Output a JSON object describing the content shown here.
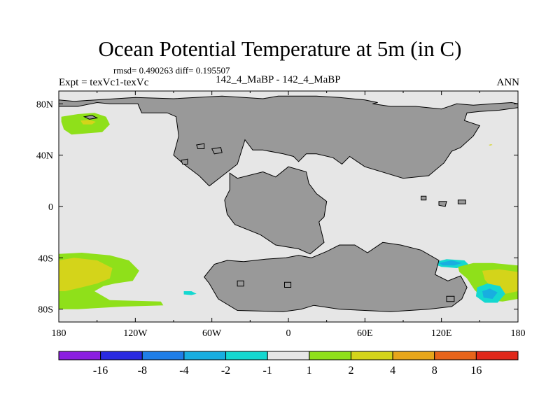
{
  "chart_data": {
    "type": "heatmap",
    "title": "Ocean Potential Temperature at 5m (in C)",
    "stats_line": "rmsd= 0.490263 diff= 0.195507",
    "left_label": "Expt = texVc1-texVc",
    "center_label": "142_4_MaBP - 142_4_MaBP",
    "right_label": "ANN",
    "xlim": [
      -180,
      180
    ],
    "ylim": [
      -90,
      90
    ],
    "x_ticks": [
      {
        "value": -180,
        "label": "180"
      },
      {
        "value": -120,
        "label": "120W"
      },
      {
        "value": -60,
        "label": "60W"
      },
      {
        "value": 0,
        "label": "0"
      },
      {
        "value": 60,
        "label": "60E"
      },
      {
        "value": 120,
        "label": "120E"
      },
      {
        "value": 180,
        "label": "180"
      }
    ],
    "y_ticks": [
      {
        "value": 80,
        "label": "80N"
      },
      {
        "value": 40,
        "label": "40N"
      },
      {
        "value": 0,
        "label": "0"
      },
      {
        "value": -40,
        "label": "40S"
      },
      {
        "value": -80,
        "label": "80S"
      }
    ],
    "colorbar": {
      "boundaries": [
        "-16",
        "-8",
        "-4",
        "-2",
        "-1",
        "1",
        "2",
        "4",
        "8",
        "16"
      ],
      "colors": [
        "#8b1ee0",
        "#2a2ae0",
        "#1f7ee8",
        "#18aee0",
        "#14d8d0",
        "#e6e6e6",
        "#8fe01a",
        "#d4d41a",
        "#e8a61a",
        "#e8641a",
        "#e0281a"
      ]
    },
    "land_color": "#999999",
    "ocean_color": "#e6e6e6",
    "regions": [
      {
        "name": "north-pacific-warm-patch",
        "level": 2,
        "points": [
          [
            -178,
            70
          ],
          [
            -165,
            72
          ],
          [
            -152,
            73
          ],
          [
            -143,
            70
          ],
          [
            -140,
            64
          ],
          [
            -146,
            58
          ],
          [
            -158,
            57
          ],
          [
            -170,
            56
          ],
          [
            -176,
            60
          ],
          [
            -178,
            66
          ]
        ]
      },
      {
        "name": "north-pacific-warm-core",
        "level": 4,
        "points": [
          [
            -163,
            67
          ],
          [
            -156,
            67.5
          ],
          [
            -151,
            66
          ],
          [
            -154,
            64
          ],
          [
            -161,
            64
          ]
        ]
      },
      {
        "name": "south-pacific-warm-band",
        "level": 2,
        "points": [
          [
            -180,
            -37
          ],
          [
            -162,
            -36
          ],
          [
            -140,
            -38
          ],
          [
            -125,
            -42
          ],
          [
            -117,
            -50
          ],
          [
            -122,
            -58
          ],
          [
            -136,
            -60
          ],
          [
            -145,
            -62
          ],
          [
            -152,
            -66
          ],
          [
            -140,
            -73
          ],
          [
            -100,
            -74
          ],
          [
            -98,
            -77
          ],
          [
            -130,
            -78
          ],
          [
            -165,
            -80
          ],
          [
            -180,
            -80
          ]
        ]
      },
      {
        "name": "south-pacific-warm-core",
        "level": 4,
        "points": [
          [
            -180,
            -42
          ],
          [
            -168,
            -40
          ],
          [
            -150,
            -42
          ],
          [
            -138,
            -48
          ],
          [
            -140,
            -56
          ],
          [
            -150,
            -60
          ],
          [
            -162,
            -63
          ],
          [
            -175,
            -66
          ],
          [
            -180,
            -66
          ]
        ]
      },
      {
        "name": "south-atlantic-cool-patch",
        "level": -1,
        "points": [
          [
            -82,
            -66
          ],
          [
            -76,
            -66
          ],
          [
            -72,
            -68
          ],
          [
            -76,
            -69
          ],
          [
            -82,
            -68.5
          ]
        ]
      },
      {
        "name": "south-indian-cool-patch",
        "level": -1,
        "points": [
          [
            112,
            -44
          ],
          [
            124,
            -41
          ],
          [
            138,
            -42
          ],
          [
            142,
            -46
          ],
          [
            132,
            -48
          ],
          [
            120,
            -47
          ]
        ]
      },
      {
        "name": "south-indian-cool-core",
        "level": -2,
        "points": [
          [
            118,
            -44
          ],
          [
            128,
            -42
          ],
          [
            136,
            -44
          ],
          [
            130,
            -46
          ],
          [
            121,
            -46
          ]
        ]
      },
      {
        "name": "south-pacific-east-warm-band",
        "level": 2,
        "points": [
          [
            133,
            -47
          ],
          [
            145,
            -44
          ],
          [
            160,
            -44
          ],
          [
            180,
            -46
          ],
          [
            180,
            -72
          ],
          [
            168,
            -74
          ],
          [
            154,
            -73
          ],
          [
            146,
            -65
          ],
          [
            140,
            -56
          ],
          [
            134,
            -51
          ]
        ]
      },
      {
        "name": "south-pacific-east-warm-core",
        "level": 4,
        "points": [
          [
            152,
            -50
          ],
          [
            165,
            -49
          ],
          [
            180,
            -51
          ],
          [
            180,
            -66
          ],
          [
            170,
            -68
          ],
          [
            160,
            -64
          ],
          [
            154,
            -57
          ]
        ]
      },
      {
        "name": "tasman-cool-patch",
        "level": -1,
        "points": [
          [
            148,
            -63
          ],
          [
            156,
            -60
          ],
          [
            166,
            -62
          ],
          [
            170,
            -68
          ],
          [
            164,
            -75
          ],
          [
            154,
            -75
          ],
          [
            147,
            -70
          ]
        ]
      },
      {
        "name": "tasman-cool-core",
        "level": -2,
        "points": [
          [
            152,
            -66
          ],
          [
            158,
            -64
          ],
          [
            164,
            -67
          ],
          [
            160,
            -72
          ],
          [
            153,
            -71
          ]
        ]
      },
      {
        "name": "east-asia-warm-speck",
        "level": 4,
        "points": [
          [
            157,
            48
          ],
          [
            159,
            48.5
          ],
          [
            160,
            48
          ],
          [
            158,
            47.5
          ]
        ]
      }
    ],
    "land": [
      {
        "name": "laurasia",
        "points": [
          [
            -180,
            83
          ],
          [
            -168,
            82
          ],
          [
            -120,
            85
          ],
          [
            -90,
            84
          ],
          [
            -52,
            86
          ],
          [
            -20,
            84
          ],
          [
            -8,
            86
          ],
          [
            22,
            86
          ],
          [
            40,
            85
          ],
          [
            60,
            83
          ],
          [
            70,
            81
          ],
          [
            66,
            80
          ],
          [
            80,
            78
          ],
          [
            100,
            78
          ],
          [
            120,
            76
          ],
          [
            132,
            80
          ],
          [
            145,
            79
          ],
          [
            160,
            80
          ],
          [
            175,
            81
          ],
          [
            180,
            80
          ],
          [
            180,
            77
          ],
          [
            165,
            75
          ],
          [
            150,
            74
          ],
          [
            140,
            73
          ],
          [
            138,
            67
          ],
          [
            150,
            63
          ],
          [
            145,
            55
          ],
          [
            135,
            46
          ],
          [
            128,
            43
          ],
          [
            122,
            34
          ],
          [
            110,
            24
          ],
          [
            90,
            22
          ],
          [
            60,
            31
          ],
          [
            48,
            39
          ],
          [
            42,
            33
          ],
          [
            35,
            38
          ],
          [
            22,
            41
          ],
          [
            14,
            41
          ],
          [
            8,
            35
          ],
          [
            4,
            39
          ],
          [
            -4,
            41
          ],
          [
            -20,
            44
          ],
          [
            -28,
            44
          ],
          [
            -34,
            52
          ],
          [
            -40,
            33
          ],
          [
            -62,
            16
          ],
          [
            -70,
            24
          ],
          [
            -82,
            33
          ],
          [
            -90,
            40
          ],
          [
            -86,
            55
          ],
          [
            -88,
            70
          ],
          [
            -95,
            73
          ],
          [
            -115,
            73
          ],
          [
            -118,
            80
          ],
          [
            -140,
            80
          ],
          [
            -150,
            81
          ],
          [
            -165,
            78
          ],
          [
            -180,
            78
          ]
        ]
      },
      {
        "name": "gondwana-west",
        "points": [
          [
            -46,
            26
          ],
          [
            -40,
            22
          ],
          [
            -20,
            27
          ],
          [
            -10,
            23
          ],
          [
            0,
            31
          ],
          [
            14,
            27
          ],
          [
            16,
            18
          ],
          [
            22,
            10
          ],
          [
            30,
            4
          ],
          [
            28,
            -8
          ],
          [
            24,
            -12
          ],
          [
            28,
            -28
          ],
          [
            17,
            -37
          ],
          [
            8,
            -33
          ],
          [
            -10,
            -30
          ],
          [
            -22,
            -22
          ],
          [
            -42,
            -14
          ],
          [
            -48,
            -6
          ],
          [
            -50,
            5
          ],
          [
            -46,
            13
          ]
        ]
      },
      {
        "name": "gondwana-south",
        "points": [
          [
            -58,
            -45
          ],
          [
            -48,
            -42
          ],
          [
            -35,
            -43
          ],
          [
            -18,
            -41
          ],
          [
            -2,
            -40
          ],
          [
            8,
            -38
          ],
          [
            18,
            -40
          ],
          [
            30,
            -35
          ],
          [
            40,
            -30
          ],
          [
            52,
            -30
          ],
          [
            62,
            -36
          ],
          [
            74,
            -28
          ],
          [
            88,
            -30
          ],
          [
            104,
            -34
          ],
          [
            118,
            -42
          ],
          [
            115,
            -53
          ],
          [
            125,
            -58
          ],
          [
            135,
            -54
          ],
          [
            140,
            -63
          ],
          [
            136,
            -72
          ],
          [
            128,
            -78
          ],
          [
            110,
            -80
          ],
          [
            80,
            -82
          ],
          [
            40,
            -80
          ],
          [
            20,
            -77
          ],
          [
            10,
            -80
          ],
          [
            -4,
            -82
          ],
          [
            -40,
            -81
          ],
          [
            -55,
            -72
          ],
          [
            -62,
            -60
          ],
          [
            -66,
            -55
          ]
        ]
      },
      {
        "name": "north-pacific-island",
        "points": [
          [
            -160,
            70
          ],
          [
            -154,
            71
          ],
          [
            -150,
            69
          ],
          [
            -156,
            68
          ]
        ]
      },
      {
        "name": "pacific-islet-1",
        "points": [
          [
            -60,
            45
          ],
          [
            -53,
            46
          ],
          [
            -52,
            42
          ],
          [
            -58,
            41
          ]
        ]
      },
      {
        "name": "pacific-islet-2",
        "points": [
          [
            -72,
            48
          ],
          [
            -66,
            49
          ],
          [
            -66,
            45
          ],
          [
            -71,
            45
          ]
        ]
      },
      {
        "name": "pacific-islet-3",
        "points": [
          [
            -84,
            36
          ],
          [
            -79,
            37
          ],
          [
            -79,
            33
          ],
          [
            -83,
            33
          ]
        ]
      },
      {
        "name": "tethys-islet-1",
        "points": [
          [
            104,
            8
          ],
          [
            108,
            8
          ],
          [
            108,
            5
          ],
          [
            104,
            5
          ]
        ]
      },
      {
        "name": "tethys-islet-2",
        "points": [
          [
            118,
            4
          ],
          [
            124,
            4
          ],
          [
            123,
            0
          ],
          [
            118,
            1
          ]
        ]
      },
      {
        "name": "tethys-islet-3",
        "points": [
          [
            133,
            5
          ],
          [
            139,
            5
          ],
          [
            139,
            2
          ],
          [
            133,
            2
          ]
        ]
      },
      {
        "name": "antarctic-islet-1",
        "points": [
          [
            -40,
            -58
          ],
          [
            -35,
            -58
          ],
          [
            -35,
            -62
          ],
          [
            -40,
            -62
          ]
        ]
      },
      {
        "name": "antarctic-islet-2",
        "points": [
          [
            -3,
            -59
          ],
          [
            2,
            -59
          ],
          [
            2,
            -63
          ],
          [
            -3,
            -63
          ]
        ]
      },
      {
        "name": "antarctic-islet-3",
        "points": [
          [
            124,
            -70
          ],
          [
            130,
            -70
          ],
          [
            130,
            -74
          ],
          [
            124,
            -74
          ]
        ]
      }
    ]
  }
}
